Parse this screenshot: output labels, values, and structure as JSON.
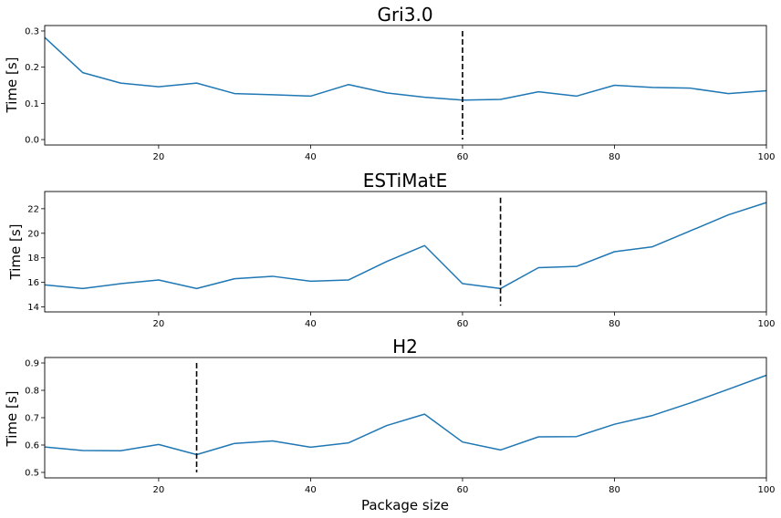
{
  "colors": {
    "series": "#1f77b4",
    "marker": "#000000",
    "background": "#ffffff"
  },
  "chart_data": [
    {
      "type": "line",
      "title": "Gri3.0",
      "xlabel": "",
      "ylabel": "Time [s]",
      "xlim": [
        5,
        100
      ],
      "ylim": [
        -0.015,
        0.315
      ],
      "xticks": [
        20,
        40,
        60,
        80,
        100
      ],
      "yticks": [
        0.0,
        0.1,
        0.2,
        0.3
      ],
      "ytick_labels": [
        "0.0",
        "0.1",
        "0.2",
        "0.3"
      ],
      "grid": false,
      "x": [
        5,
        10,
        15,
        20,
        25,
        30,
        35,
        40,
        45,
        50,
        55,
        60,
        65,
        70,
        75,
        80,
        85,
        90,
        95,
        100
      ],
      "values": [
        0.282,
        0.185,
        0.156,
        0.146,
        0.156,
        0.127,
        0.124,
        0.12,
        0.152,
        0.129,
        0.117,
        0.109,
        0.111,
        0.132,
        0.12,
        0.15,
        0.144,
        0.142,
        0.127,
        0.135
      ],
      "vline": {
        "x": 60,
        "y_range": [
          0.0,
          0.3
        ]
      }
    },
    {
      "type": "line",
      "title": "ESTiMatE",
      "xlabel": "",
      "ylabel": "Time [s]",
      "xlim": [
        5,
        100
      ],
      "ylim": [
        13.6,
        23.4
      ],
      "xticks": [
        20,
        40,
        60,
        80,
        100
      ],
      "yticks": [
        14,
        16,
        18,
        20,
        22
      ],
      "ytick_labels": [
        "14",
        "16",
        "18",
        "20",
        "22"
      ],
      "grid": false,
      "x": [
        5,
        10,
        15,
        20,
        25,
        30,
        35,
        40,
        45,
        50,
        55,
        60,
        65,
        70,
        75,
        80,
        85,
        90,
        95,
        100
      ],
      "values": [
        15.8,
        15.5,
        15.9,
        16.2,
        15.5,
        16.3,
        16.5,
        16.1,
        16.2,
        17.7,
        19.0,
        15.9,
        15.5,
        17.2,
        17.3,
        18.5,
        18.9,
        20.2,
        21.5,
        22.5
      ],
      "vline": {
        "x": 65,
        "y_range": [
          14.1,
          22.9
        ]
      }
    },
    {
      "type": "line",
      "title": "H2",
      "xlabel": "Package size",
      "ylabel": "Time [s]",
      "xlim": [
        5,
        100
      ],
      "ylim": [
        0.48,
        0.92
      ],
      "xticks": [
        20,
        40,
        60,
        80,
        100
      ],
      "yticks": [
        0.5,
        0.6,
        0.7,
        0.8,
        0.9
      ],
      "ytick_labels": [
        "0.5",
        "0.6",
        "0.7",
        "0.8",
        "0.9"
      ],
      "grid": false,
      "x": [
        5,
        10,
        15,
        20,
        25,
        30,
        35,
        40,
        45,
        50,
        55,
        60,
        65,
        70,
        75,
        80,
        85,
        90,
        95,
        100
      ],
      "values": [
        0.593,
        0.58,
        0.579,
        0.602,
        0.565,
        0.606,
        0.615,
        0.592,
        0.608,
        0.671,
        0.713,
        0.611,
        0.582,
        0.63,
        0.631,
        0.676,
        0.708,
        0.754,
        0.804,
        0.855
      ],
      "vline": {
        "x": 25,
        "y_range": [
          0.5,
          0.9
        ]
      }
    }
  ]
}
